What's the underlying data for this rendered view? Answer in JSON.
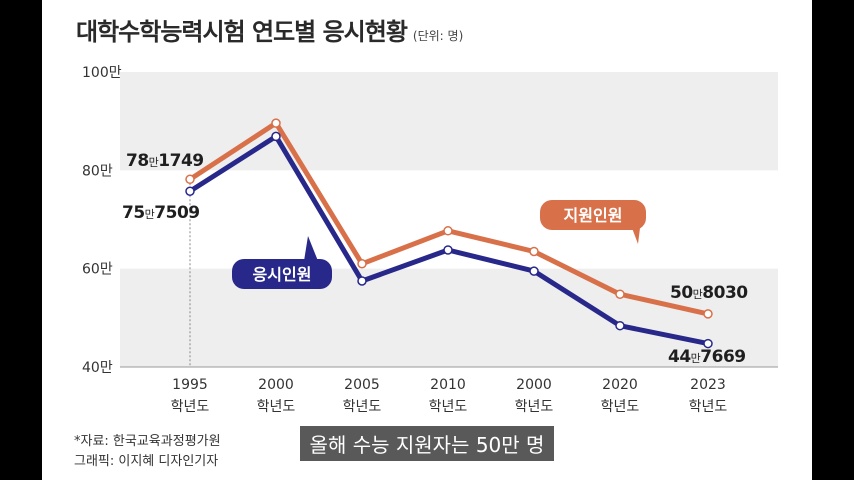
{
  "title": "대학수학능력시험 연도별 응시현황",
  "unit_note": "(단위: 명)",
  "source": "*자료: 한국교육과정평가원",
  "credit": "그래픽: 이지혜 디자인기자",
  "subtitle": "올해 수능 지원자는 50만 명",
  "colors": {
    "applicants": "#d8714a",
    "takers": "#27288a",
    "band": "#eeeeee"
  },
  "chart_data": {
    "type": "line",
    "title": "대학수학능력시험 연도별 응시현황",
    "unit": "명",
    "categories": [
      "1995\n학년도",
      "2000\n학년도",
      "2005\n학년도",
      "2010\n학년도",
      "2000\n학년도",
      "2020\n학년도",
      "2023\n학년도"
    ],
    "y_ticks": [
      "40만",
      "60만",
      "80만",
      "100만"
    ],
    "y_tick_values": [
      400000,
      600000,
      800000,
      1000000
    ],
    "ylim": [
      400000,
      1000000
    ],
    "grid": "alternating horizontal bands",
    "series": [
      {
        "name": "지원인원",
        "color": "#d8714a",
        "values": [
          781749,
          896000,
          610000,
          677000,
          635000,
          548000,
          508030
        ]
      },
      {
        "name": "응시인원",
        "color": "#27288a",
        "values": [
          757509,
          869000,
          575000,
          638000,
          595000,
          484000,
          447669
        ]
      }
    ],
    "data_labels": [
      {
        "series": 0,
        "index": 0,
        "prefix": "78",
        "small": "만",
        "suffix": "1749"
      },
      {
        "series": 1,
        "index": 0,
        "prefix": "75",
        "small": "만",
        "suffix": "7509"
      },
      {
        "series": 0,
        "index": 6,
        "prefix": "50",
        "small": "만",
        "suffix": "8030"
      },
      {
        "series": 1,
        "index": 6,
        "prefix": "44",
        "small": "만",
        "suffix": "7669"
      }
    ],
    "callouts": [
      {
        "series": 0,
        "text": "지원인원"
      },
      {
        "series": 1,
        "text": "응시인원"
      }
    ]
  }
}
